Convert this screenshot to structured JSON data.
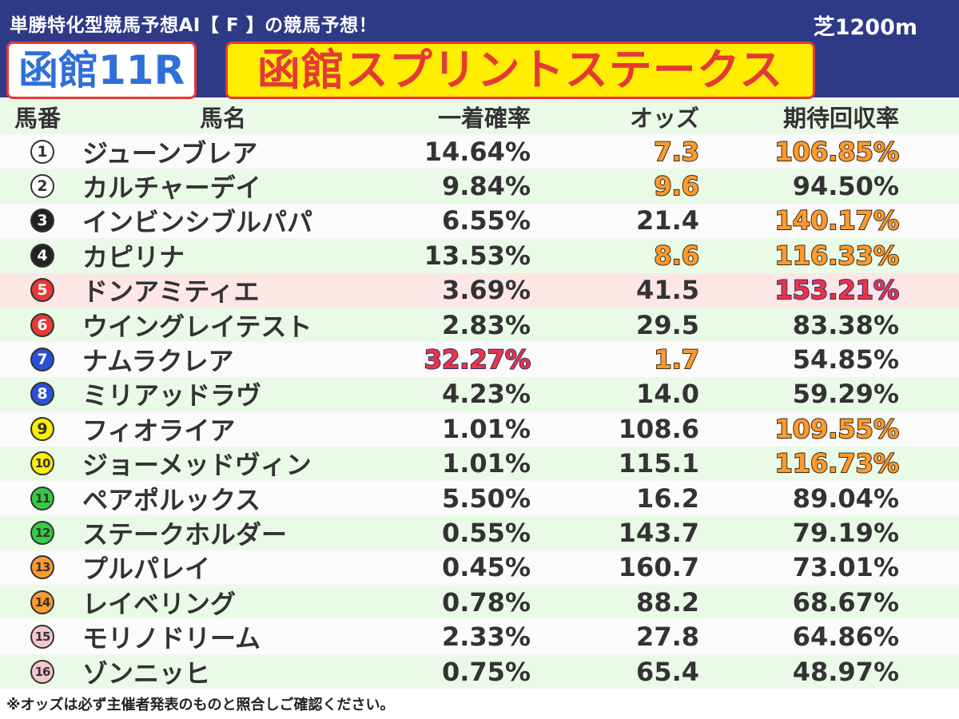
{
  "header": {
    "subtitle": "単勝特化型競馬予想AI【 F 】の競馬予想！",
    "surface": "芝1200m",
    "race_no": "函館11R",
    "race_name": "函館スプリントステークス"
  },
  "table": {
    "columns": [
      "馬番",
      "馬名",
      "一着確率",
      "オッズ",
      "期待回収率"
    ],
    "rows": [
      {
        "no": "1",
        "name": "ジューンブレア",
        "prob": "14.64%",
        "odds": "7.3",
        "ret": "106.85%",
        "badge_bg": "#ffffff",
        "badge_fg": "#333333",
        "odds_hl": "orange",
        "ret_hl": "orange",
        "prob_hl": "",
        "row_hl": false
      },
      {
        "no": "2",
        "name": "カルチャーデイ",
        "prob": "9.84%",
        "odds": "9.6",
        "ret": "94.50%",
        "badge_bg": "#ffffff",
        "badge_fg": "#333333",
        "odds_hl": "orange",
        "ret_hl": "",
        "prob_hl": "",
        "row_hl": false
      },
      {
        "no": "3",
        "name": "インビンシブルパパ",
        "prob": "6.55%",
        "odds": "21.4",
        "ret": "140.17%",
        "badge_bg": "#222222",
        "badge_fg": "#ffffff",
        "odds_hl": "",
        "ret_hl": "orange",
        "prob_hl": "",
        "row_hl": false
      },
      {
        "no": "4",
        "name": "カピリナ",
        "prob": "13.53%",
        "odds": "8.6",
        "ret": "116.33%",
        "badge_bg": "#222222",
        "badge_fg": "#ffffff",
        "odds_hl": "orange",
        "ret_hl": "orange",
        "prob_hl": "",
        "row_hl": false
      },
      {
        "no": "5",
        "name": "ドンアミティエ",
        "prob": "3.69%",
        "odds": "41.5",
        "ret": "153.21%",
        "badge_bg": "#e53935",
        "badge_fg": "#ffffff",
        "odds_hl": "",
        "ret_hl": "red",
        "prob_hl": "",
        "row_hl": true
      },
      {
        "no": "6",
        "name": "ウイングレイテスト",
        "prob": "2.83%",
        "odds": "29.5",
        "ret": "83.38%",
        "badge_bg": "#e53935",
        "badge_fg": "#ffffff",
        "odds_hl": "",
        "ret_hl": "",
        "prob_hl": "",
        "row_hl": false
      },
      {
        "no": "7",
        "name": "ナムラクレア",
        "prob": "32.27%",
        "odds": "1.7",
        "ret": "54.85%",
        "badge_bg": "#2b4fd8",
        "badge_fg": "#ffffff",
        "odds_hl": "orange",
        "ret_hl": "",
        "prob_hl": "red",
        "row_hl": false
      },
      {
        "no": "8",
        "name": "ミリアッドラヴ",
        "prob": "4.23%",
        "odds": "14.0",
        "ret": "59.29%",
        "badge_bg": "#2b4fd8",
        "badge_fg": "#ffffff",
        "odds_hl": "",
        "ret_hl": "",
        "prob_hl": "",
        "row_hl": false
      },
      {
        "no": "9",
        "name": "フィオライア",
        "prob": "1.01%",
        "odds": "108.6",
        "ret": "109.55%",
        "badge_bg": "#ffee00",
        "badge_fg": "#333333",
        "odds_hl": "",
        "ret_hl": "orange",
        "prob_hl": "",
        "row_hl": false
      },
      {
        "no": "10",
        "name": "ジョーメッドヴィン",
        "prob": "1.01%",
        "odds": "115.1",
        "ret": "116.73%",
        "badge_bg": "#ffee00",
        "badge_fg": "#333333",
        "odds_hl": "",
        "ret_hl": "orange",
        "prob_hl": "",
        "row_hl": false
      },
      {
        "no": "11",
        "name": "ペアポルックス",
        "prob": "5.50%",
        "odds": "16.2",
        "ret": "89.04%",
        "badge_bg": "#33cc44",
        "badge_fg": "#333333",
        "odds_hl": "",
        "ret_hl": "",
        "prob_hl": "",
        "row_hl": false
      },
      {
        "no": "12",
        "name": "ステークホルダー",
        "prob": "0.55%",
        "odds": "143.7",
        "ret": "79.19%",
        "badge_bg": "#33cc44",
        "badge_fg": "#333333",
        "odds_hl": "",
        "ret_hl": "",
        "prob_hl": "",
        "row_hl": false
      },
      {
        "no": "13",
        "name": "プルパレイ",
        "prob": "0.45%",
        "odds": "160.7",
        "ret": "73.01%",
        "badge_bg": "#ff9a2e",
        "badge_fg": "#333333",
        "odds_hl": "",
        "ret_hl": "",
        "prob_hl": "",
        "row_hl": false
      },
      {
        "no": "14",
        "name": "レイベリング",
        "prob": "0.78%",
        "odds": "88.2",
        "ret": "68.67%",
        "badge_bg": "#ff9a2e",
        "badge_fg": "#333333",
        "odds_hl": "",
        "ret_hl": "",
        "prob_hl": "",
        "row_hl": false
      },
      {
        "no": "15",
        "name": "モリノドリーム",
        "prob": "2.33%",
        "odds": "27.8",
        "ret": "64.86%",
        "badge_bg": "#f7c6cf",
        "badge_fg": "#333333",
        "odds_hl": "",
        "ret_hl": "",
        "prob_hl": "",
        "row_hl": false
      },
      {
        "no": "16",
        "name": "ゾンニッヒ",
        "prob": "0.75%",
        "odds": "65.4",
        "ret": "48.97%",
        "badge_bg": "#f7c6cf",
        "badge_fg": "#333333",
        "odds_hl": "",
        "ret_hl": "",
        "prob_hl": "",
        "row_hl": false
      }
    ]
  },
  "footer": {
    "note": "※オッズは必ず主催者発表のものと照合しご確認ください。"
  }
}
